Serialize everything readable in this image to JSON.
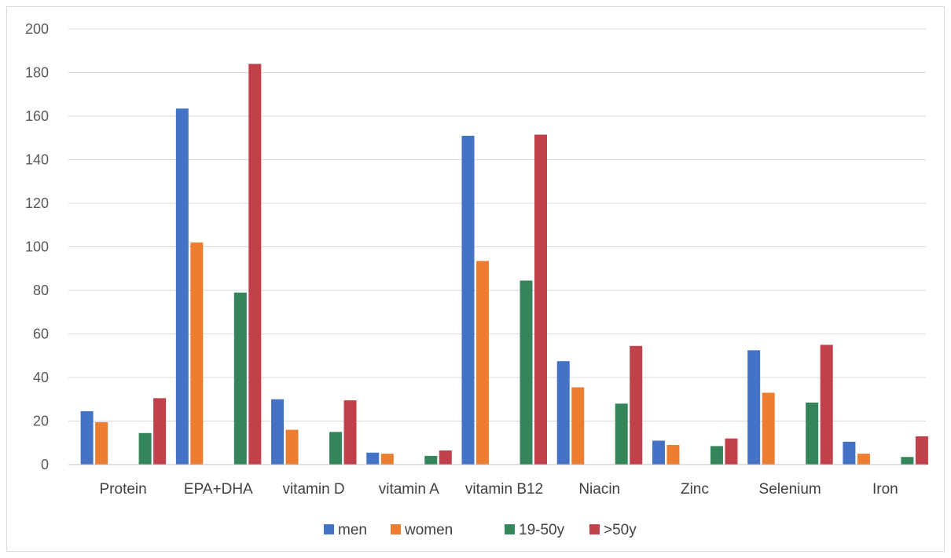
{
  "chart_data": {
    "type": "bar",
    "categories": [
      "Protein",
      "EPA+DHA",
      "vitamin D",
      "vitamin A",
      "vitamin B12",
      "Niacin",
      "Zinc",
      "Selenium",
      "Iron"
    ],
    "series": [
      {
        "name": "men",
        "color": "#4472c4",
        "values": [
          24.5,
          163.5,
          30,
          5.5,
          151,
          47.5,
          11,
          52.5,
          10.5
        ]
      },
      {
        "name": "women",
        "color": "#ed7d31",
        "values": [
          19.5,
          102,
          16,
          5,
          93.5,
          35.5,
          9,
          33,
          5
        ]
      },
      {
        "name": "19-50y",
        "color": "#348559",
        "values": [
          14.5,
          79,
          15,
          4,
          84.5,
          28,
          8.5,
          28.5,
          3.5
        ]
      },
      {
        "name": ">50y",
        "color": "#c0414a",
        "values": [
          30.5,
          184,
          29.5,
          6.5,
          151.5,
          54.5,
          12,
          55,
          13
        ]
      }
    ],
    "yticks": [
      "0",
      "20",
      "40",
      "60",
      "80",
      "100",
      "120",
      "140",
      "160",
      "180",
      "200"
    ],
    "ylim": [
      0,
      200
    ],
    "grid": true,
    "legend_position": "bottom",
    "title": "",
    "xlabel": "",
    "ylabel": ""
  }
}
